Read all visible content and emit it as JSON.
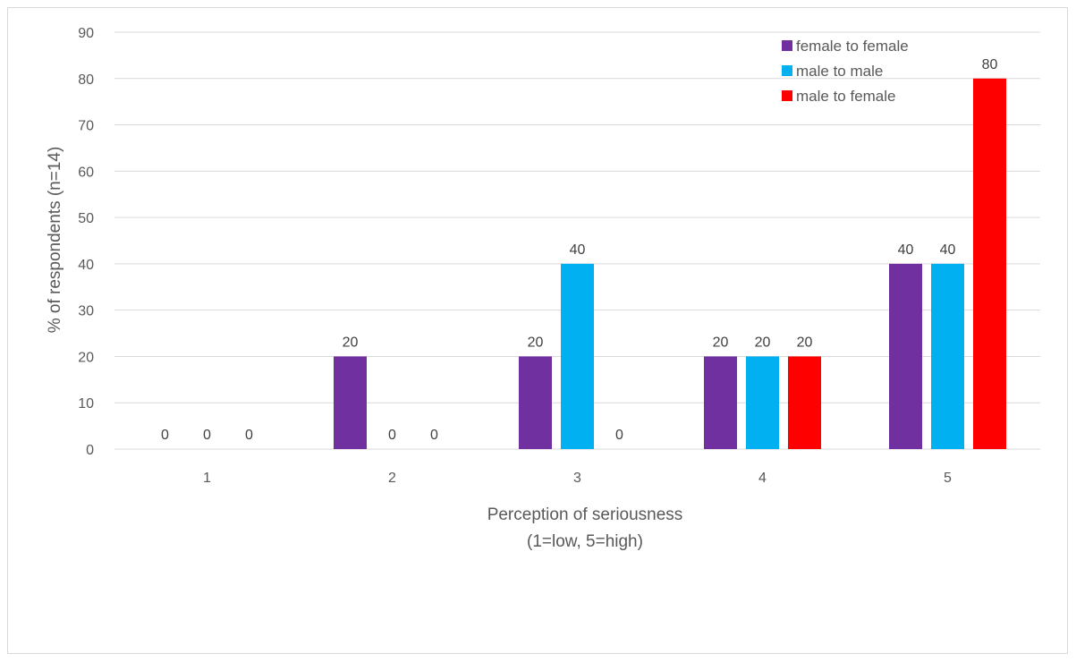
{
  "chart_data": {
    "type": "bar",
    "title": "",
    "xlabel": "Perception of seriousness",
    "xlabel_line2": "(1=low, 5=high)",
    "ylabel": "% of respondents (n=14)",
    "ylim": [
      0,
      90
    ],
    "y_ticks": [
      0,
      10,
      20,
      30,
      40,
      50,
      60,
      70,
      80,
      90
    ],
    "categories": [
      "1",
      "2",
      "3",
      "4",
      "5"
    ],
    "series": [
      {
        "name": "female to female",
        "color": "#7030a0",
        "values": [
          0,
          20,
          20,
          20,
          40
        ]
      },
      {
        "name": "male to male",
        "color": "#00b0f0",
        "values": [
          0,
          0,
          40,
          20,
          40
        ]
      },
      {
        "name": "male to female",
        "color": "#ff0000",
        "values": [
          0,
          0,
          0,
          20,
          80
        ]
      }
    ],
    "grid": true,
    "legend_position": "top-right",
    "data_labels": true
  }
}
